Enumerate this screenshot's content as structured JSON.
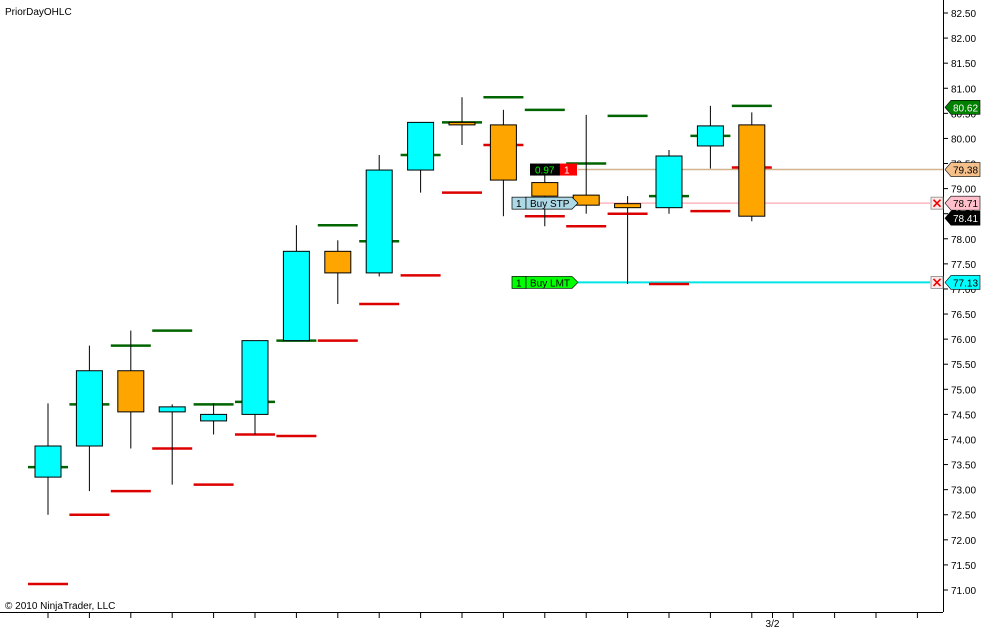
{
  "chart_title": "PriorDayOHLC",
  "copyright": "© 2010 NinjaTrader, LLC",
  "colors": {
    "up_body": "#00ffff",
    "down_body": "#ffa500",
    "wick": "#000000",
    "prior_high": "#006400",
    "prior_low": "#dd0000",
    "prior_close": "#006400",
    "last_price_line": "#d2b48c",
    "stop_line": "#ffb6c1",
    "limit_line": "#00e5e5"
  },
  "chart_data": {
    "type": "candlestick",
    "title": "PriorDayOHLC",
    "ylim": [
      70.7,
      82.7
    ],
    "y_ticks": [
      "82.50",
      "82.00",
      "81.50",
      "81.00",
      "80.50",
      "80.00",
      "79.50",
      "79.00",
      "78.50",
      "78.00",
      "77.50",
      "77.00",
      "76.50",
      "76.00",
      "75.50",
      "75.00",
      "74.50",
      "74.00",
      "73.50",
      "73.00",
      "72.50",
      "72.00",
      "71.50",
      "71.00"
    ],
    "x_labels": [
      {
        "bar": 17.5,
        "label": "3/2"
      }
    ],
    "bars": [
      {
        "o": 73.25,
        "h": 74.72,
        "l": 72.5,
        "c": 73.87,
        "pc": 73.45,
        "pl": 71.12
      },
      {
        "o": 73.87,
        "h": 75.87,
        "l": 72.97,
        "c": 75.37,
        "pc": 74.7,
        "pl": 72.5
      },
      {
        "o": 75.37,
        "h": 76.17,
        "l": 73.82,
        "c": 74.55,
        "pc": 75.87,
        "pl": 72.97
      },
      {
        "o": 74.55,
        "h": 74.7,
        "l": 73.1,
        "c": 74.65,
        "pc": 76.17,
        "pl": 73.82
      },
      {
        "o": 74.37,
        "h": 74.72,
        "l": 74.1,
        "c": 74.5,
        "pc": 74.7,
        "pl": 73.1
      },
      {
        "o": 74.5,
        "h": 75.97,
        "l": 74.1,
        "c": 75.97,
        "pc": 74.75,
        "pl": 74.1
      },
      {
        "o": 75.97,
        "h": 78.27,
        "l": 75.97,
        "c": 77.75,
        "pc": 75.97,
        "pl": 74.07
      },
      {
        "o": 77.75,
        "h": 77.97,
        "l": 76.7,
        "c": 77.32,
        "pc": 78.27,
        "pl": 75.97
      },
      {
        "o": 77.32,
        "h": 79.67,
        "l": 77.25,
        "c": 79.37,
        "pc": 77.95,
        "pl": 76.7
      },
      {
        "o": 79.37,
        "h": 80.32,
        "l": 78.92,
        "c": 80.32,
        "pc": 79.67,
        "pl": 77.27
      },
      {
        "o": 80.32,
        "h": 80.82,
        "l": 79.87,
        "c": 80.27,
        "pc": 80.32,
        "pl": 78.92
      },
      {
        "o": 80.27,
        "h": 80.57,
        "l": 78.45,
        "c": 79.17,
        "pc": 80.82,
        "pl": 79.87
      },
      {
        "o": 79.12,
        "h": 79.45,
        "l": 78.25,
        "c": 78.85,
        "pc": 80.57,
        "pl": 78.45
      },
      {
        "o": 78.87,
        "h": 80.47,
        "l": 78.5,
        "c": 78.67,
        "pc": 79.5,
        "pl": 78.25
      },
      {
        "o": 78.7,
        "h": 78.85,
        "l": 77.1,
        "c": 78.62,
        "pc": 80.45,
        "pl": 78.5
      },
      {
        "o": 78.62,
        "h": 79.77,
        "l": 78.5,
        "c": 79.65,
        "pc": 78.85,
        "pl": 77.1
      },
      {
        "o": 79.85,
        "h": 80.65,
        "l": 79.4,
        "c": 80.25,
        "pc": 80.05,
        "pl": 78.55
      },
      {
        "o": 80.27,
        "h": 80.52,
        "l": 78.35,
        "c": 78.45,
        "pc": 80.65,
        "pl": 79.42
      }
    ],
    "price_markers": [
      {
        "label": "80.62",
        "value": 80.62,
        "bg": "#008000",
        "fg": "#ffffff"
      },
      {
        "label": "79.38",
        "value": 79.38,
        "bg": "#f5c08a",
        "fg": "#000000"
      },
      {
        "label": "78.71",
        "value": 78.71,
        "bg": "#ffc0cb",
        "fg": "#000000"
      },
      {
        "label": "78.41",
        "value": 78.41,
        "bg": "#000000",
        "fg": "#ffffff"
      },
      {
        "label": "77.13",
        "value": 77.13,
        "bg": "#00ffff",
        "fg": "#000000"
      }
    ],
    "orders": [
      {
        "qty": "1",
        "text": "Buy STP",
        "value": 78.71,
        "bg": "#add8e6"
      },
      {
        "qty": "1",
        "text": "Buy LMT",
        "value": 77.13,
        "bg": "#00ff00"
      }
    ],
    "position": {
      "pnl": "0.97",
      "qty": "1",
      "value": 79.38
    }
  }
}
